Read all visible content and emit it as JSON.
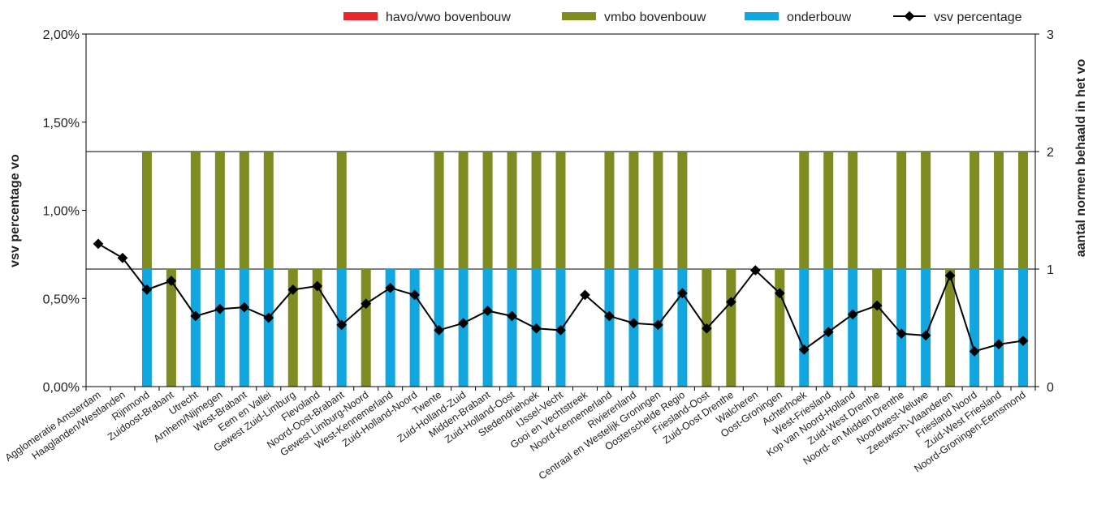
{
  "chart_data": {
    "type": "bar",
    "title": "",
    "ylabel": "vsv percentage vo",
    "y2label": "aantal normen behaald in het vo",
    "ylim": [
      0,
      2
    ],
    "y2lim": [
      0,
      3
    ],
    "y_ticks": [
      "0,00%",
      "0,50%",
      "1,00%",
      "1,50%",
      "2,00%"
    ],
    "y2_ticks": [
      "0",
      "1",
      "2",
      "3"
    ],
    "legend_position": "top",
    "categories": [
      "Agglomeratie Amsterdam",
      "Haaglanden/Westlanden",
      "Rijnmond",
      "Zuidoost-Brabant",
      "Utrecht",
      "Arnhem/Nijmegen",
      "West-Brabant",
      "Eem en Vallei",
      "Gewest Zuid-Limburg",
      "Flevoland",
      "Noord-Oost-Brabant",
      "Gewest Limburg-Noord",
      "West-Kennemerland",
      "Zuid-Holland-Noord",
      "Twente",
      "Zuid-Holland-Zuid",
      "Midden-Brabant",
      "Zuid-Holland-Oost",
      "Stedendriehoek",
      "IJssel-Vecht",
      "Gooi en Vechtstreek",
      "Noord-Kennemerland",
      "Rivierenland",
      "Centraal en Westelijk Groningen",
      "Oosterschelde Regio",
      "Friesland-Oost",
      "Zuid-Oost Drenthe",
      "Walcheren",
      "Oost-Groningen",
      "Achterhoek",
      "West-Friesland",
      "Kop van Noord-Holland",
      "Zuid-West Drenthe",
      "Noord- en Midden Drenthe",
      "Noordwest-Veluwe",
      "Zeeuwsch-Vlaanderen",
      "Friesland Noord",
      "Zuid-West Friesland",
      "Noord-Groningen-Eemsmond"
    ],
    "series": [
      {
        "name": "havo/vwo bovenbouw",
        "type": "bar",
        "axis": "right",
        "color": "#e8262a",
        "values": [
          0,
          0,
          0,
          0,
          0,
          0,
          0,
          0,
          0,
          0,
          0,
          0,
          0,
          0,
          0,
          0,
          0,
          0,
          0,
          0,
          0,
          0,
          0,
          0,
          0,
          0,
          0,
          0,
          0,
          0,
          0,
          0,
          0,
          0,
          0,
          0,
          0,
          0,
          0
        ]
      },
      {
        "name": "vmbo bovenbouw",
        "type": "bar",
        "axis": "right",
        "color": "#7e8c22",
        "values": [
          0,
          0,
          1,
          1,
          1,
          1,
          1,
          1,
          1,
          1,
          1,
          1,
          0,
          0,
          1,
          1,
          1,
          1,
          1,
          1,
          0,
          1,
          1,
          1,
          1,
          1,
          1,
          0,
          1,
          1,
          1,
          1,
          1,
          1,
          1,
          1,
          1,
          1,
          1
        ]
      },
      {
        "name": "onderbouw",
        "type": "bar",
        "axis": "right",
        "color": "#12a6e0",
        "values": [
          0,
          0,
          1,
          0,
          1,
          1,
          1,
          1,
          0,
          0,
          1,
          0,
          1,
          1,
          1,
          1,
          1,
          1,
          1,
          1,
          0,
          1,
          1,
          1,
          1,
          0,
          0,
          0,
          0,
          1,
          1,
          1,
          0,
          1,
          1,
          0,
          1,
          1,
          1
        ]
      },
      {
        "name": "vsv percentage",
        "type": "line",
        "axis": "left",
        "color": "#000000",
        "values": [
          0.81,
          0.73,
          0.55,
          0.6,
          0.4,
          0.44,
          0.45,
          0.39,
          0.55,
          0.57,
          0.35,
          0.47,
          0.56,
          0.52,
          0.32,
          0.36,
          0.43,
          0.4,
          0.33,
          0.32,
          0.52,
          0.4,
          0.36,
          0.35,
          0.53,
          0.33,
          0.48,
          0.66,
          0.53,
          0.21,
          0.31,
          0.41,
          0.46,
          0.3,
          0.29,
          0.63,
          0.2,
          0.24,
          0.26
        ]
      }
    ]
  }
}
